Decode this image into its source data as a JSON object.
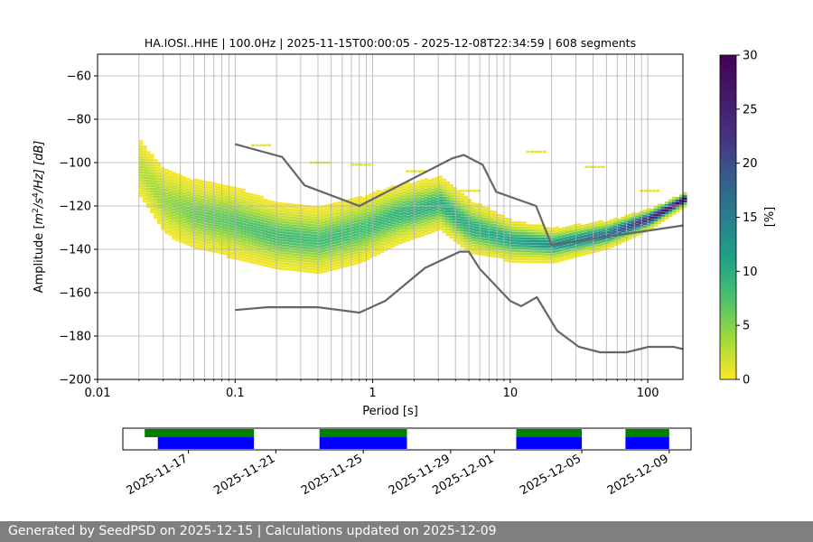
{
  "chart_data": {
    "type": "heatmap",
    "title": "HA.IOSI..HHE | 100.0Hz | 2025-11-15T00:00:05 - 2025-12-08T22:34:59 | 608 segments",
    "xlabel": "Period [s]",
    "ylabel_parts": [
      "Amplitude [",
      "m",
      "2",
      "/s",
      "4",
      "/Hz] [dB]"
    ],
    "x_scale": "log",
    "xlim": [
      0.01,
      180
    ],
    "ylim": [
      -200,
      -50
    ],
    "x_ticks": [
      {
        "v": 0.01,
        "label": "0.01"
      },
      {
        "v": 0.1,
        "label": "0.1"
      },
      {
        "v": 1,
        "label": "1"
      },
      {
        "v": 10,
        "label": "10"
      },
      {
        "v": 100,
        "label": "100"
      }
    ],
    "y_ticks": [
      {
        "v": -60,
        "label": "−60"
      },
      {
        "v": -80,
        "label": "−80"
      },
      {
        "v": -100,
        "label": "−100"
      },
      {
        "v": -120,
        "label": "−120"
      },
      {
        "v": -140,
        "label": "−140"
      },
      {
        "v": -160,
        "label": "−160"
      },
      {
        "v": -180,
        "label": "−180"
      },
      {
        "v": -200,
        "label": "−200"
      }
    ],
    "grid": true,
    "colorbar": {
      "label": "[%]",
      "colormap": "viridis_r",
      "range": [
        0,
        30
      ],
      "ticks": [
        {
          "v": 0,
          "label": "0"
        },
        {
          "v": 5,
          "label": "5"
        },
        {
          "v": 10,
          "label": "10"
        },
        {
          "v": 15,
          "label": "15"
        },
        {
          "v": 20,
          "label": "20"
        },
        {
          "v": 25,
          "label": "25"
        },
        {
          "v": 30,
          "label": "30"
        }
      ]
    },
    "psd_columns": [
      {
        "period": 0.02,
        "center": -103,
        "spread": 10,
        "peak": 3
      },
      {
        "period": 0.03,
        "center": -118,
        "spread": 11,
        "peak": 4
      },
      {
        "period": 0.05,
        "center": -124,
        "spread": 11,
        "peak": 6
      },
      {
        "period": 0.1,
        "center": -128,
        "spread": 11,
        "peak": 7
      },
      {
        "period": 0.2,
        "center": -134,
        "spread": 10,
        "peak": 8
      },
      {
        "period": 0.4,
        "center": -136,
        "spread": 10,
        "peak": 8
      },
      {
        "period": 0.8,
        "center": -131,
        "spread": 10,
        "peak": 8
      },
      {
        "period": 1.5,
        "center": -124,
        "spread": 9,
        "peak": 9
      },
      {
        "period": 3,
        "center": -119,
        "spread": 8,
        "peak": 10
      },
      {
        "period": 5,
        "center": -130,
        "spread": 8,
        "peak": 10
      },
      {
        "period": 10,
        "center": -136,
        "spread": 6,
        "peak": 11
      },
      {
        "period": 20,
        "center": -138,
        "spread": 5,
        "peak": 13
      },
      {
        "period": 50,
        "center": -133,
        "spread": 4,
        "peak": 17
      },
      {
        "period": 100,
        "center": -126,
        "spread": 3,
        "peak": 25
      },
      {
        "period": 180,
        "center": -117,
        "spread": 2,
        "peak": 30
      }
    ],
    "psd_outliers": [
      {
        "period": 0.15,
        "upper": -92,
        "peak": 1
      },
      {
        "period": 0.4,
        "upper": -100,
        "peak": 1
      },
      {
        "period": 0.8,
        "upper": -101,
        "peak": 1
      },
      {
        "period": 2,
        "upper": -104,
        "peak": 1
      },
      {
        "period": 5,
        "upper": -113,
        "peak": 1
      },
      {
        "period": 15,
        "upper": -95,
        "peak": 1
      },
      {
        "period": 40,
        "upper": -102,
        "peak": 1
      },
      {
        "period": 100,
        "upper": -113,
        "peak": 1
      }
    ],
    "nhnm": [
      [
        0.1,
        -91.5
      ],
      [
        0.22,
        -97.4
      ],
      [
        0.32,
        -110.5
      ],
      [
        0.8,
        -120
      ],
      [
        3.8,
        -98
      ],
      [
        4.6,
        -96.5
      ],
      [
        6.3,
        -101
      ],
      [
        7.9,
        -113.5
      ],
      [
        15.4,
        -120
      ],
      [
        20,
        -138
      ],
      [
        180,
        -129
      ]
    ],
    "nlnm": [
      [
        0.1,
        -168
      ],
      [
        0.17,
        -166.7
      ],
      [
        0.4,
        -166.7
      ],
      [
        0.8,
        -169.2
      ],
      [
        1.24,
        -163.7
      ],
      [
        2.4,
        -148.6
      ],
      [
        4.3,
        -141.1
      ],
      [
        5,
        -141.1
      ],
      [
        6,
        -149
      ],
      [
        10,
        -163.8
      ],
      [
        12,
        -166.2
      ],
      [
        15.6,
        -162.1
      ],
      [
        21.9,
        -177.5
      ],
      [
        31.6,
        -185
      ],
      [
        45,
        -187.5
      ],
      [
        70,
        -187.5
      ],
      [
        101,
        -185
      ],
      [
        154,
        -185
      ],
      [
        180,
        -186
      ]
    ],
    "timeline": {
      "start": "2025-11-14",
      "end": "2025-12-10",
      "tick_labels": [
        "2025-11-17",
        "2025-11-21",
        "2025-11-25",
        "2025-11-29",
        "2025-12-01",
        "2025-12-05",
        "2025-12-09"
      ],
      "tick_dates": [
        "2025-11-17",
        "2025-11-21",
        "2025-11-25",
        "2025-11-29",
        "2025-12-01",
        "2025-12-05",
        "2025-12-09"
      ],
      "green_segments": [
        [
          "2025-11-15",
          "2025-11-20"
        ],
        [
          "2025-11-23",
          "2025-11-27"
        ],
        [
          "2025-12-02",
          "2025-12-05"
        ],
        [
          "2025-12-07",
          "2025-12-09"
        ]
      ],
      "blue_segments": [
        [
          "2025-11-15.6",
          "2025-11-20"
        ],
        [
          "2025-11-23",
          "2025-11-27"
        ],
        [
          "2025-12-02",
          "2025-12-05"
        ],
        [
          "2025-12-07",
          "2025-12-09"
        ]
      ],
      "colors": {
        "green": "#008000",
        "blue": "#0000ff"
      }
    }
  },
  "footer": "Generated by SeedPSD on 2025-12-15 | Calculations updated on 2025-12-09"
}
